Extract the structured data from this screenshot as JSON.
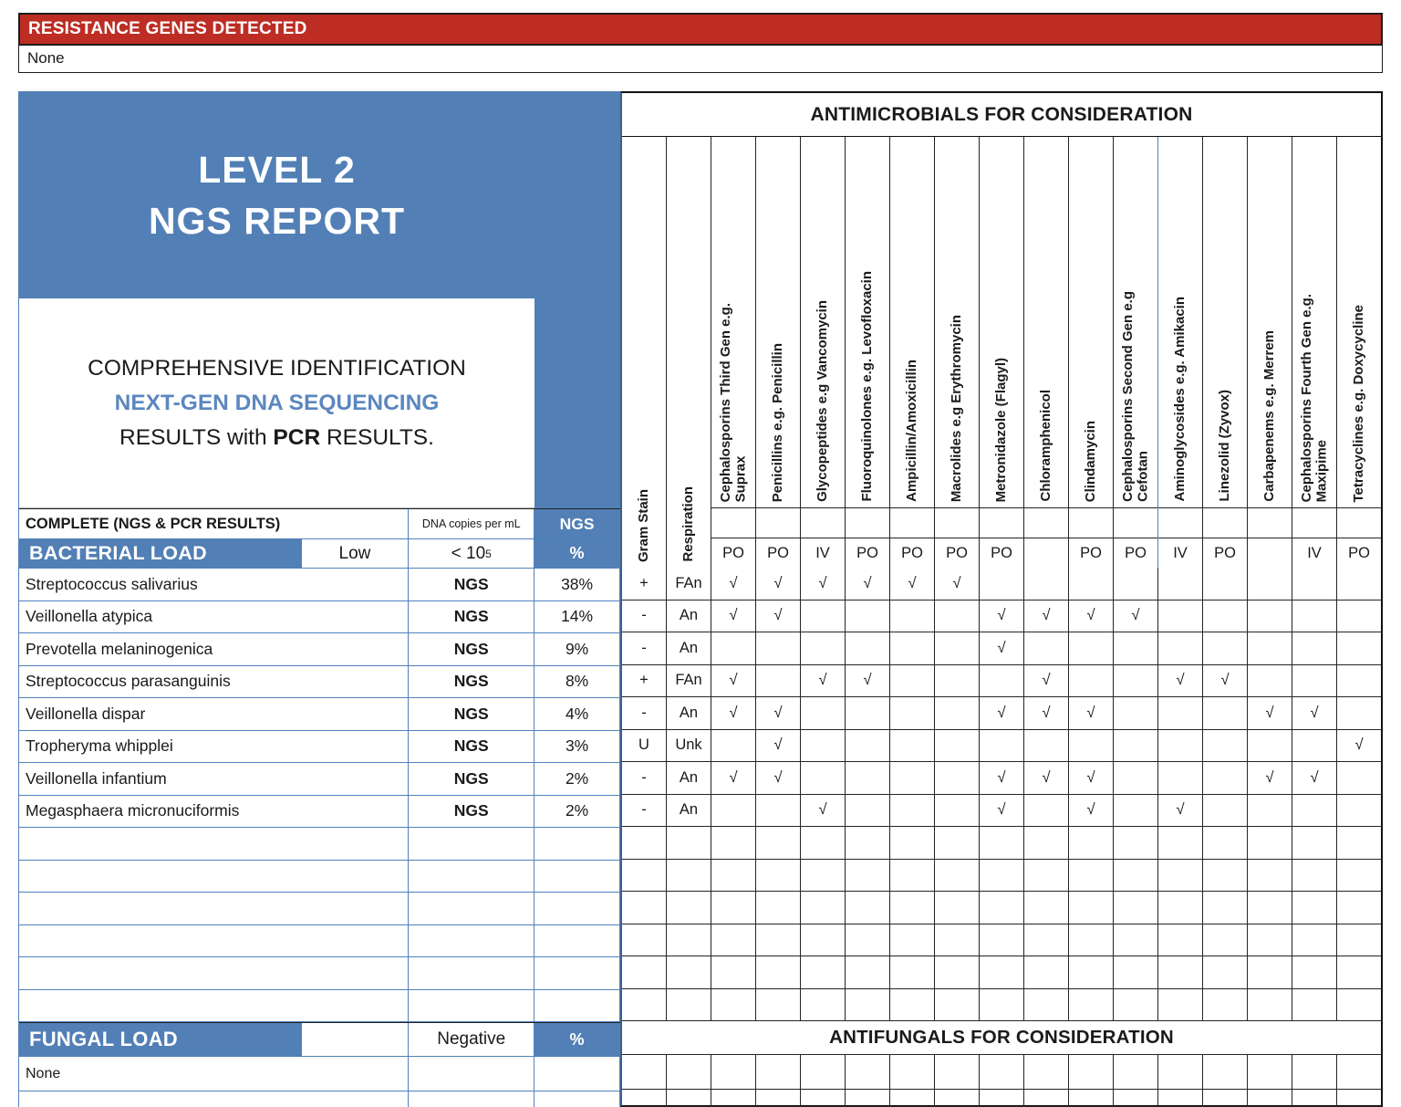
{
  "colors": {
    "banner_red": "#bd2d24",
    "panel_blue": "#527fb5",
    "table_border_blue": "#4f81bd",
    "accent_text_blue": "#5b87bf"
  },
  "resistance": {
    "title": "RESISTANCE GENES DETECTED",
    "value": "None"
  },
  "report": {
    "title_line1": "LEVEL 2",
    "title_line2": "NGS REPORT",
    "desc_line1": "COMPREHENSIVE IDENTIFICATION",
    "desc_line2": "NEXT-GEN DNA SEQUENCING",
    "desc_line3_pre": "RESULTS with ",
    "desc_line3_bold": "PCR",
    "desc_line3_post": " RESULTS."
  },
  "table": {
    "complete_label": "COMPLETE  (NGS & PCR RESULTS)",
    "dna_copies_label": "DNA copies per mL",
    "ngs_label": "NGS",
    "bacterial": {
      "label": "BACTERIAL LOAD",
      "level": "Low",
      "threshold_base": "< 10",
      "threshold_sup": "5",
      "pct_label": "%"
    },
    "fungal": {
      "label": "FUNGAL LOAD",
      "level": "",
      "result": "Negative",
      "pct_label": "%"
    },
    "fungal_none": "None",
    "empty_mid_rows": 6
  },
  "antimicrobials": {
    "header": "ANTIMICROBIALS FOR CONSIDERATION",
    "antifungals_header": "ANTIFUNGALS FOR CONSIDERATION",
    "check_symbol": "√",
    "fixed_columns": [
      "Gram Stain",
      "Respiration"
    ],
    "columns": [
      {
        "lines": [
          "Cephalosporins Third Gen e.g.",
          "Suprax"
        ],
        "route": "PO"
      },
      {
        "lines": [
          "Penicillins e.g. Penicillin"
        ],
        "route": "PO"
      },
      {
        "lines": [
          "Glycopeptides e.g Vancomycin"
        ],
        "route": "IV"
      },
      {
        "lines": [
          "Fluoroquinolones e.g. Levofloxacin"
        ],
        "route": "PO"
      },
      {
        "lines": [
          "Ampicillin/Amoxicillin"
        ],
        "route": "PO"
      },
      {
        "lines": [
          "Macrolides e.g Erythromycin"
        ],
        "route": "PO"
      },
      {
        "lines": [
          "Metronidazole (Flagyl)"
        ],
        "route": "PO"
      },
      {
        "lines": [
          "Chloramphenicol"
        ],
        "route": ""
      },
      {
        "lines": [
          "Clindamycin"
        ],
        "route": "PO"
      },
      {
        "lines": [
          "Cephalosporins Second Gen e.g",
          "Cefotan"
        ],
        "route": "PO",
        "blue_right": true
      },
      {
        "lines": [
          "Aminoglycosides e.g. Amikacin"
        ],
        "route": "IV"
      },
      {
        "lines": [
          "Linezolid (Zyvox)"
        ],
        "route": "PO"
      },
      {
        "lines": [
          "Carbapenems e.g. Merrem"
        ],
        "route": ""
      },
      {
        "lines": [
          "Cephalosporins Fourth Gen e.g.",
          "Maxipime"
        ],
        "route": "IV"
      },
      {
        "lines": [
          "Tetracyclines e.g. Doxycycline"
        ],
        "route": "PO"
      }
    ]
  },
  "organisms": [
    {
      "name": "Streptococcus salivarius",
      "method": "NGS",
      "pct": "38%",
      "gram": "+",
      "respiration": "FAn",
      "checks": [
        1,
        1,
        1,
        1,
        1,
        1,
        0,
        0,
        0,
        0,
        0,
        0,
        0,
        0,
        0
      ]
    },
    {
      "name": "Veillonella atypica",
      "method": "NGS",
      "pct": "14%",
      "gram": "-",
      "respiration": "An",
      "checks": [
        1,
        1,
        0,
        0,
        0,
        0,
        1,
        1,
        1,
        1,
        0,
        0,
        0,
        0,
        0
      ]
    },
    {
      "name": "Prevotella melaninogenica",
      "method": "NGS",
      "pct": "9%",
      "gram": "-",
      "respiration": "An",
      "checks": [
        0,
        0,
        0,
        0,
        0,
        0,
        1,
        0,
        0,
        0,
        0,
        0,
        0,
        0,
        0
      ]
    },
    {
      "name": "Streptococcus parasanguinis",
      "method": "NGS",
      "pct": "8%",
      "gram": "+",
      "respiration": "FAn",
      "checks": [
        1,
        0,
        1,
        1,
        0,
        0,
        0,
        1,
        0,
        0,
        1,
        1,
        0,
        0,
        0
      ]
    },
    {
      "name": "Veillonella dispar",
      "method": "NGS",
      "pct": "4%",
      "gram": "-",
      "respiration": "An",
      "checks": [
        1,
        1,
        0,
        0,
        0,
        0,
        1,
        1,
        1,
        0,
        0,
        0,
        1,
        1,
        0
      ]
    },
    {
      "name": "Tropheryma whipplei",
      "method": "NGS",
      "pct": "3%",
      "gram": "U",
      "respiration": "Unk",
      "checks": [
        0,
        1,
        0,
        0,
        0,
        0,
        0,
        0,
        0,
        0,
        0,
        0,
        0,
        0,
        1
      ]
    },
    {
      "name": "Veillonella infantium",
      "method": "NGS",
      "pct": "2%",
      "gram": "-",
      "respiration": "An",
      "checks": [
        1,
        1,
        0,
        0,
        0,
        0,
        1,
        1,
        1,
        0,
        0,
        0,
        1,
        1,
        0
      ]
    },
    {
      "name": "Megasphaera micronuciformis",
      "method": "NGS",
      "pct": "2%",
      "gram": "-",
      "respiration": "An",
      "checks": [
        0,
        0,
        1,
        0,
        0,
        0,
        1,
        0,
        1,
        0,
        1,
        0,
        0,
        0,
        0
      ]
    }
  ]
}
